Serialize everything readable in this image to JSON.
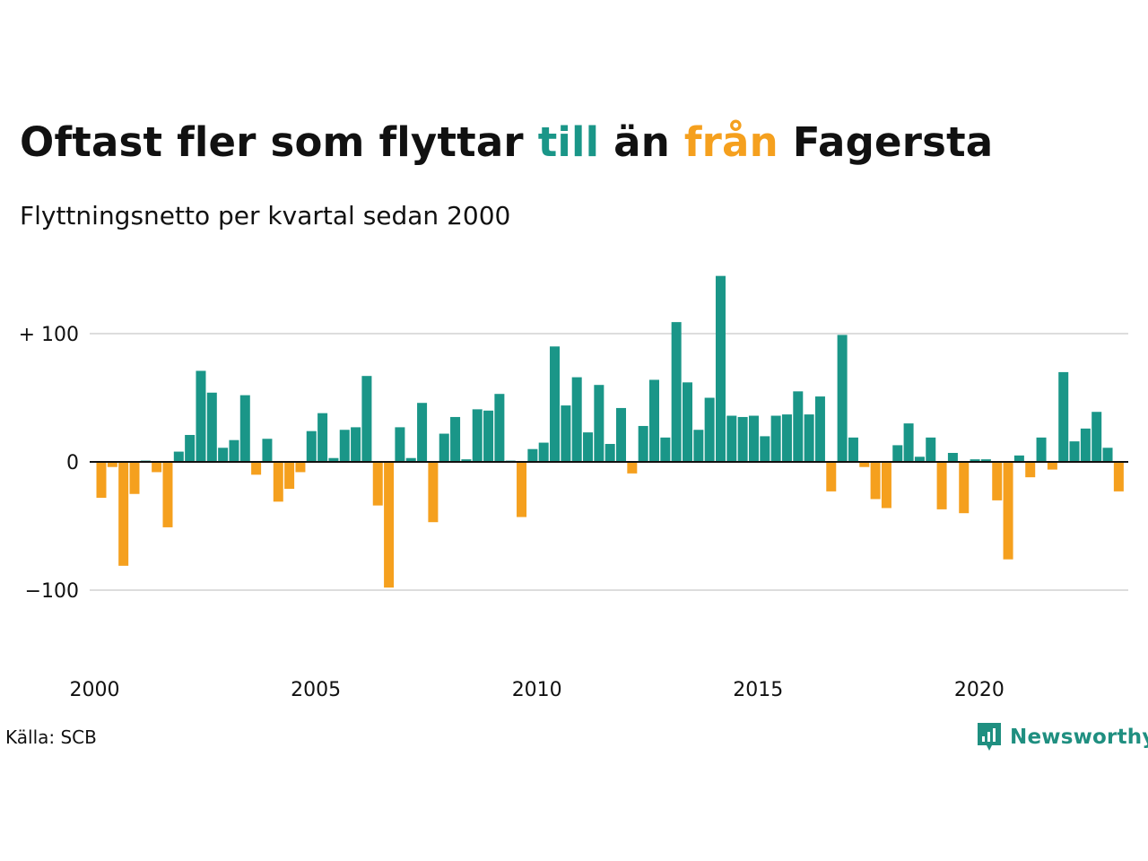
{
  "header": {
    "title_parts": [
      {
        "text": "Oftast fler som flyttar ",
        "color": "#111111"
      },
      {
        "text": "till",
        "color": "#1a9688"
      },
      {
        "text": " än ",
        "color": "#111111"
      },
      {
        "text": "från",
        "color": "#f5a01e"
      },
      {
        "text": " Fagersta",
        "color": "#111111"
      }
    ],
    "subtitle": "Flyttningsnetto per kvartal sedan 2000"
  },
  "footer": {
    "source": "Källa: SCB",
    "brand_name": "Newsworthy",
    "brand_color": "#1f8f80",
    "brand_icon": "newsworthy-logo-icon"
  },
  "chart_data": {
    "type": "bar",
    "title": "Oftast fler som flyttar till än från Fagersta",
    "subtitle": "Flyttningsnetto per kvartal sedan 2000",
    "xlabel": "",
    "ylabel": "",
    "x_start": "2000Q1",
    "x_tick_labels": [
      "2000",
      "2005",
      "2010",
      "2015",
      "2020"
    ],
    "y_tick_values": [
      100,
      0,
      -100
    ],
    "y_tick_labels": [
      "+ 100",
      "0",
      "−100"
    ],
    "ylim": [
      -160,
      160
    ],
    "grid": true,
    "legend": "none",
    "colors": {
      "positive": "#1a9688",
      "negative": "#f5a01e",
      "grid": "#dddddd",
      "baseline": "#111111"
    },
    "values": [
      -28,
      -4,
      -81,
      -25,
      1,
      -8,
      -51,
      8,
      21,
      71,
      54,
      11,
      17,
      52,
      -10,
      18,
      -31,
      -21,
      -8,
      24,
      38,
      3,
      25,
      27,
      67,
      -34,
      -98,
      27,
      3,
      46,
      -47,
      22,
      35,
      2,
      41,
      40,
      53,
      1,
      -43,
      10,
      15,
      90,
      44,
      66,
      23,
      60,
      14,
      42,
      -9,
      28,
      64,
      19,
      109,
      62,
      25,
      50,
      145,
      36,
      35,
      36,
      20,
      36,
      37,
      55,
      37,
      51,
      -23,
      99,
      19,
      -4,
      -29,
      -36,
      13,
      30,
      4,
      19,
      -37,
      7,
      -40,
      2,
      2,
      -30,
      -76,
      5,
      -12,
      19,
      -6,
      70,
      16,
      26,
      39,
      11,
      -23
    ]
  }
}
